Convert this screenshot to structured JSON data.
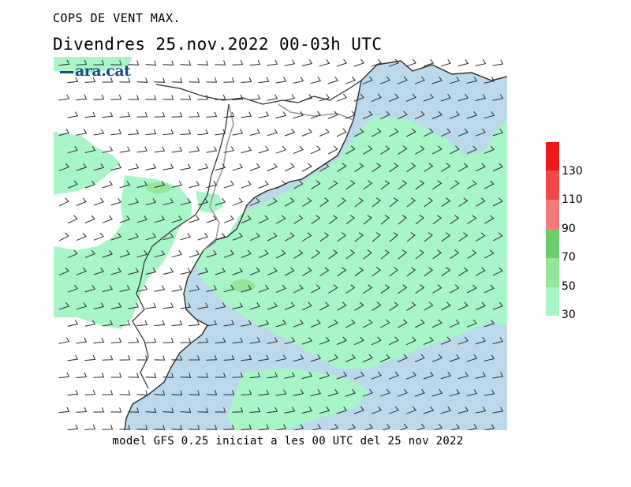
{
  "header": {
    "title": "COPS DE VENT MAX.",
    "subtitle": "Divendres  25.nov.2022 00-03h UTC"
  },
  "logo": {
    "text": "ara.cat"
  },
  "footer": {
    "caption": "model GFS 0.25 iniciat a les 00 UTC del 25 nov 2022"
  },
  "legend": {
    "labels": [
      "130",
      "110",
      "90",
      "70",
      "50",
      "30"
    ],
    "bins": [
      {
        "min": 30,
        "max": 50,
        "color": "#a8f5c8"
      },
      {
        "min": 50,
        "max": 70,
        "color": "#94e69a"
      },
      {
        "min": 70,
        "max": 90,
        "color": "#6ccd6c"
      },
      {
        "min": 90,
        "max": 110,
        "color": "#f77a7a"
      },
      {
        "min": 110,
        "max": 130,
        "color": "#f04848"
      },
      {
        "min": 130,
        "max": 150,
        "color": "#ee1a1a"
      }
    ]
  },
  "map_colors": {
    "land": "#ffffff",
    "sea": "#bcd9ec",
    "wind_30_50": "#a8f5c8",
    "wind_50_70": "#94e69a",
    "coastline": "#2a2a2a",
    "border": "#9a9a9a",
    "barb": "#2b2b2b"
  }
}
